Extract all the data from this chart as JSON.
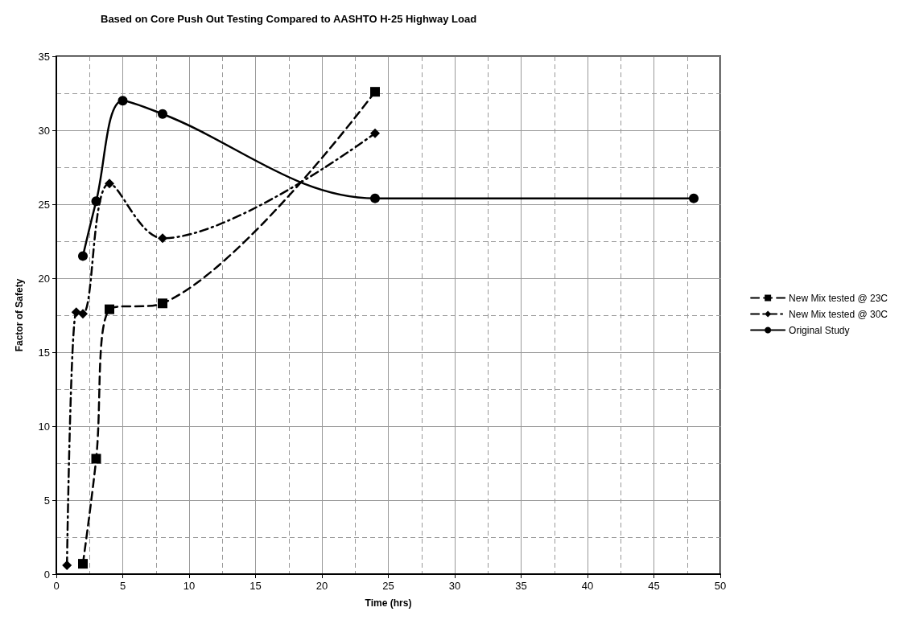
{
  "chart_data": {
    "type": "line",
    "title": "Based on Core Push Out Testing Compared to AASHTO H-25 Highway Load",
    "xlabel": "Time (hrs)",
    "ylabel": "Factor of Safety",
    "xlim": [
      0,
      50
    ],
    "xticks": [
      0,
      5,
      10,
      15,
      20,
      25,
      30,
      35,
      40,
      45,
      50
    ],
    "ylim": [
      0,
      35
    ],
    "yticks": [
      0,
      5,
      10,
      15,
      20,
      25,
      30,
      35
    ],
    "grid": true,
    "legend": "right",
    "series": [
      {
        "name": "New Mix tested @ 23C",
        "color": "#000000",
        "marker": "square",
        "line_style": "dashed",
        "x": [
          2,
          3,
          4,
          8,
          24
        ],
        "values": [
          0.7,
          7.8,
          17.9,
          18.3,
          32.6
        ]
      },
      {
        "name": "New Mix tested @ 30C",
        "color": "#000000",
        "marker": "diamond",
        "line_style": "dashdot",
        "x": [
          0.8,
          1.5,
          2,
          4,
          8,
          24
        ],
        "values": [
          0.6,
          17.7,
          17.6,
          26.4,
          22.7,
          29.8
        ]
      },
      {
        "name": "Original Study",
        "color": "#000000",
        "marker": "circle",
        "line_style": "solid",
        "x": [
          2,
          3,
          5,
          8,
          24,
          48
        ],
        "values": [
          21.5,
          25.2,
          32,
          31.1,
          25.4,
          25.4
        ]
      }
    ]
  }
}
